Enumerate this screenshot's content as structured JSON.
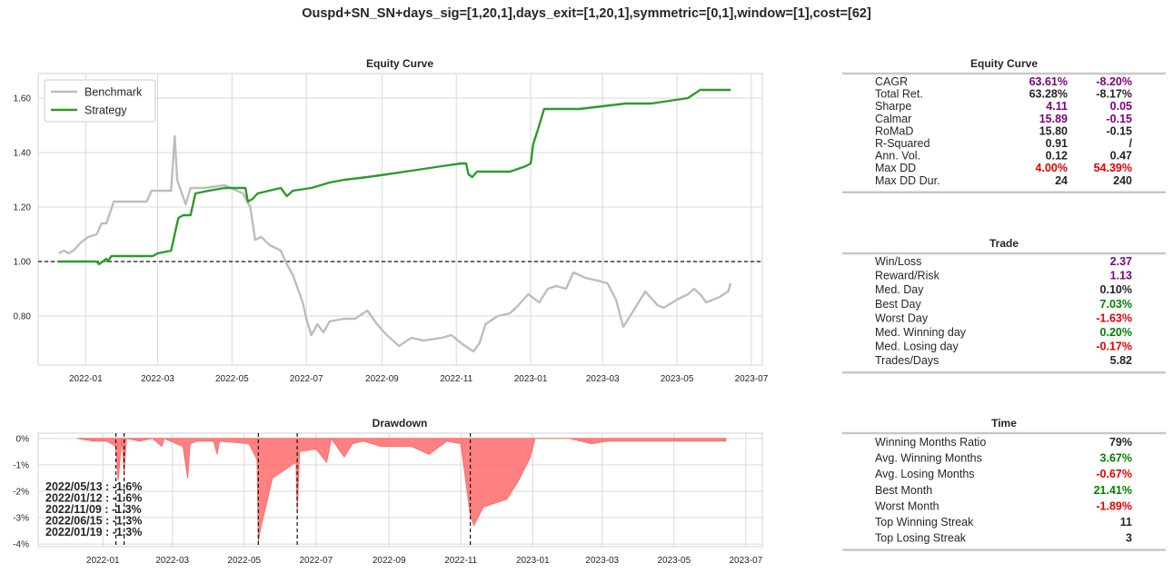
{
  "suptitle": "Ouspd+SN_SN+days_sig=[1,20,1],days_exit=[1,20,1],symmetric=[0,1],window=[1],cost=[62]",
  "colors": {
    "benchmark": "#bdbdbd",
    "strategy": "#2e9a2e",
    "drawdown": "#ff6b6b",
    "purple": "#800080",
    "green": "#008000",
    "red": "#e00000",
    "black": "#262626"
  },
  "chart_data": [
    {
      "type": "line",
      "title": "Equity Curve",
      "x_ticks": [
        "2022-01",
        "2022-03",
        "2022-05",
        "2022-07",
        "2022-09",
        "2022-11",
        "2023-01",
        "2023-03",
        "2023-05",
        "2023-07"
      ],
      "y_ticks": [
        "0.80",
        "1.00",
        "1.20",
        "1.40",
        "1.60"
      ],
      "ylim": [
        0.62,
        1.69
      ],
      "baseline": 1.0,
      "legend": "top-left",
      "series": [
        {
          "name": "Benchmark",
          "points": [
            [
              "2021-12-10",
              1.03
            ],
            [
              "2021-12-14",
              1.04
            ],
            [
              "2021-12-18",
              1.03
            ],
            [
              "2021-12-22",
              1.04
            ],
            [
              "2021-12-28",
              1.07
            ],
            [
              "2022-01-03",
              1.09
            ],
            [
              "2022-01-10",
              1.1
            ],
            [
              "2022-01-14",
              1.14
            ],
            [
              "2022-01-18",
              1.14
            ],
            [
              "2022-01-24",
              1.22
            ],
            [
              "2022-02-05",
              1.22
            ],
            [
              "2022-02-20",
              1.22
            ],
            [
              "2022-02-24",
              1.26
            ],
            [
              "2022-03-05",
              1.26
            ],
            [
              "2022-03-12",
              1.26
            ],
            [
              "2022-03-15",
              1.46
            ],
            [
              "2022-03-17",
              1.3
            ],
            [
              "2022-03-20",
              1.26
            ],
            [
              "2022-03-24",
              1.21
            ],
            [
              "2022-03-28",
              1.27
            ],
            [
              "2022-04-08",
              1.27
            ],
            [
              "2022-04-25",
              1.28
            ],
            [
              "2022-05-10",
              1.25
            ],
            [
              "2022-05-16",
              1.2
            ],
            [
              "2022-05-20",
              1.08
            ],
            [
              "2022-05-25",
              1.09
            ],
            [
              "2022-06-01",
              1.06
            ],
            [
              "2022-06-10",
              1.04
            ],
            [
              "2022-06-15",
              0.99
            ],
            [
              "2022-06-20",
              0.95
            ],
            [
              "2022-06-28",
              0.85
            ],
            [
              "2022-07-01",
              0.79
            ],
            [
              "2022-07-05",
              0.73
            ],
            [
              "2022-07-10",
              0.77
            ],
            [
              "2022-07-15",
              0.74
            ],
            [
              "2022-07-20",
              0.78
            ],
            [
              "2022-08-01",
              0.79
            ],
            [
              "2022-08-10",
              0.79
            ],
            [
              "2022-08-20",
              0.82
            ],
            [
              "2022-08-28",
              0.77
            ],
            [
              "2022-09-05",
              0.73
            ],
            [
              "2022-09-15",
              0.69
            ],
            [
              "2022-09-25",
              0.72
            ],
            [
              "2022-10-05",
              0.71
            ],
            [
              "2022-10-20",
              0.72
            ],
            [
              "2022-10-28",
              0.73
            ],
            [
              "2022-11-05",
              0.7
            ],
            [
              "2022-11-15",
              0.67
            ],
            [
              "2022-11-20",
              0.7
            ],
            [
              "2022-11-25",
              0.77
            ],
            [
              "2022-12-05",
              0.8
            ],
            [
              "2022-12-15",
              0.81
            ],
            [
              "2022-12-22",
              0.84
            ],
            [
              "2022-12-30",
              0.88
            ],
            [
              "2023-01-08",
              0.85
            ],
            [
              "2023-01-15",
              0.9
            ],
            [
              "2023-01-22",
              0.91
            ],
            [
              "2023-01-30",
              0.9
            ],
            [
              "2023-02-05",
              0.96
            ],
            [
              "2023-02-15",
              0.94
            ],
            [
              "2023-02-25",
              0.93
            ],
            [
              "2023-03-05",
              0.92
            ],
            [
              "2023-03-12",
              0.86
            ],
            [
              "2023-03-18",
              0.76
            ],
            [
              "2023-03-25",
              0.81
            ],
            [
              "2023-04-05",
              0.89
            ],
            [
              "2023-04-15",
              0.84
            ],
            [
              "2023-04-20",
              0.83
            ],
            [
              "2023-05-01",
              0.86
            ],
            [
              "2023-05-10",
              0.88
            ],
            [
              "2023-05-15",
              0.9
            ],
            [
              "2023-05-20",
              0.88
            ],
            [
              "2023-05-25",
              0.85
            ],
            [
              "2023-06-05",
              0.87
            ],
            [
              "2023-06-12",
              0.89
            ],
            [
              "2023-06-14",
              0.92
            ]
          ]
        },
        {
          "name": "Strategy",
          "points": [
            [
              "2021-12-10",
              1.0
            ],
            [
              "2021-12-25",
              1.0
            ],
            [
              "2022-01-05",
              1.0
            ],
            [
              "2022-01-10",
              1.0
            ],
            [
              "2022-01-12",
              0.99
            ],
            [
              "2022-01-15",
              1.0
            ],
            [
              "2022-01-18",
              1.01
            ],
            [
              "2022-01-19",
              1.0
            ],
            [
              "2022-01-22",
              1.02
            ],
            [
              "2022-02-15",
              1.02
            ],
            [
              "2022-02-25",
              1.02
            ],
            [
              "2022-03-01",
              1.03
            ],
            [
              "2022-03-12",
              1.04
            ],
            [
              "2022-03-15",
              1.1
            ],
            [
              "2022-03-18",
              1.16
            ],
            [
              "2022-03-22",
              1.17
            ],
            [
              "2022-03-28",
              1.17
            ],
            [
              "2022-04-01",
              1.25
            ],
            [
              "2022-04-12",
              1.26
            ],
            [
              "2022-04-25",
              1.27
            ],
            [
              "2022-05-05",
              1.27
            ],
            [
              "2022-05-12",
              1.27
            ],
            [
              "2022-05-14",
              1.22
            ],
            [
              "2022-05-18",
              1.23
            ],
            [
              "2022-05-22",
              1.25
            ],
            [
              "2022-06-10",
              1.27
            ],
            [
              "2022-06-15",
              1.24
            ],
            [
              "2022-06-20",
              1.26
            ],
            [
              "2022-07-05",
              1.27
            ],
            [
              "2022-07-20",
              1.29
            ],
            [
              "2022-08-01",
              1.3
            ],
            [
              "2022-08-20",
              1.31
            ],
            [
              "2022-09-05",
              1.32
            ],
            [
              "2022-09-20",
              1.33
            ],
            [
              "2022-10-05",
              1.34
            ],
            [
              "2022-10-20",
              1.35
            ],
            [
              "2022-11-05",
              1.36
            ],
            [
              "2022-11-09",
              1.36
            ],
            [
              "2022-11-11",
              1.32
            ],
            [
              "2022-11-14",
              1.31
            ],
            [
              "2022-11-18",
              1.33
            ],
            [
              "2022-12-15",
              1.33
            ],
            [
              "2022-12-28",
              1.35
            ],
            [
              "2023-01-01",
              1.36
            ],
            [
              "2023-01-03",
              1.43
            ],
            [
              "2023-01-08",
              1.5
            ],
            [
              "2023-01-12",
              1.56
            ],
            [
              "2023-02-01",
              1.56
            ],
            [
              "2023-02-10",
              1.56
            ],
            [
              "2023-03-01",
              1.57
            ],
            [
              "2023-03-20",
              1.58
            ],
            [
              "2023-04-10",
              1.58
            ],
            [
              "2023-04-25",
              1.59
            ],
            [
              "2023-05-10",
              1.6
            ],
            [
              "2023-05-20",
              1.63
            ],
            [
              "2023-06-14",
              1.63
            ]
          ]
        }
      ]
    },
    {
      "type": "area",
      "title": "Drawdown",
      "x_ticks": [
        "2022-01",
        "2022-03",
        "2022-05",
        "2022-07",
        "2022-09",
        "2022-11",
        "2023-01",
        "2023-03",
        "2023-05",
        "2023-07"
      ],
      "y_ticks": [
        "0%",
        "-1%",
        "-2%",
        "-3%",
        "-4%"
      ],
      "ylim": [
        -4.1,
        0.2
      ],
      "points": [
        [
          "2021-12-10",
          0
        ],
        [
          "2021-12-24",
          -0.1
        ],
        [
          "2022-01-04",
          -0.1
        ],
        [
          "2022-01-12",
          -0.3
        ],
        [
          "2022-01-14",
          -1.6
        ],
        [
          "2022-01-17",
          0
        ],
        [
          "2022-01-19",
          -1.3
        ],
        [
          "2022-01-21",
          0
        ],
        [
          "2022-02-01",
          -0.1
        ],
        [
          "2022-02-12",
          0
        ],
        [
          "2022-02-20",
          -0.3
        ],
        [
          "2022-02-22",
          0
        ],
        [
          "2022-03-10",
          -0.3
        ],
        [
          "2022-03-14",
          -1.5
        ],
        [
          "2022-03-16",
          -0.2
        ],
        [
          "2022-03-22",
          -0.1
        ],
        [
          "2022-04-05",
          -0.1
        ],
        [
          "2022-04-08",
          -0.6
        ],
        [
          "2022-04-10",
          -0.1
        ],
        [
          "2022-05-05",
          -0.2
        ],
        [
          "2022-05-12",
          -0.8
        ],
        [
          "2022-05-13",
          -3.9
        ],
        [
          "2022-05-15",
          -3.4
        ],
        [
          "2022-05-25",
          -1.5
        ],
        [
          "2022-06-14",
          -0.9
        ],
        [
          "2022-06-15",
          -2.8
        ],
        [
          "2022-06-17",
          -0.5
        ],
        [
          "2022-07-01",
          -0.4
        ],
        [
          "2022-07-10",
          -0.9
        ],
        [
          "2022-07-14",
          0
        ],
        [
          "2022-07-25",
          -0.7
        ],
        [
          "2022-08-01",
          -0.2
        ],
        [
          "2022-08-10",
          -0.1
        ],
        [
          "2022-08-25",
          -0.3
        ],
        [
          "2022-09-20",
          -0.3
        ],
        [
          "2022-10-05",
          -0.6
        ],
        [
          "2022-10-20",
          -0.1
        ],
        [
          "2022-11-01",
          -0.2
        ],
        [
          "2022-11-09",
          -2.9
        ],
        [
          "2022-11-12",
          -3.3
        ],
        [
          "2022-11-20",
          -2.6
        ],
        [
          "2022-12-10",
          -2.3
        ],
        [
          "2022-12-20",
          -1.6
        ],
        [
          "2022-12-30",
          -0.7
        ],
        [
          "2023-01-03",
          0
        ],
        [
          "2023-02-01",
          0
        ],
        [
          "2023-02-20",
          -0.2
        ],
        [
          "2023-03-05",
          -0.1
        ],
        [
          "2023-03-20",
          -0.1
        ],
        [
          "2023-04-10",
          -0.1
        ],
        [
          "2023-04-25",
          -0.1
        ],
        [
          "2023-05-15",
          -0.1
        ],
        [
          "2023-06-14",
          -0.1
        ]
      ],
      "markers": [
        "2022-01-12",
        "2022-01-19",
        "2022-05-13",
        "2022-06-15",
        "2022-11-09"
      ],
      "annotations": [
        "2022/05/13 : -1.6%",
        "2022/01/12 : -1.6%",
        "2022/11/09 : -1.3%",
        "2022/06/15 : -1.3%",
        "2022/01/19 : -1.3%"
      ]
    }
  ],
  "tables": {
    "equity": {
      "title": "Equity Curve",
      "rows": [
        {
          "label": "CAGR",
          "v1": "63.61%",
          "v2": "-8.20%",
          "c1": "purple",
          "c2": "purple"
        },
        {
          "label": "Total Ret.",
          "v1": "63.28%",
          "v2": "-8.17%",
          "c1": "black",
          "c2": "black"
        },
        {
          "label": "Sharpe",
          "v1": "4.11",
          "v2": "0.05",
          "c1": "purple",
          "c2": "purple"
        },
        {
          "label": "Calmar",
          "v1": "15.89",
          "v2": "-0.15",
          "c1": "purple",
          "c2": "purple"
        },
        {
          "label": "RoMaD",
          "v1": "15.80",
          "v2": "-0.15",
          "c1": "black",
          "c2": "black"
        },
        {
          "label": "R-Squared",
          "v1": "0.91",
          "v2": "/",
          "c1": "black",
          "c2": "black"
        },
        {
          "label": "Ann. Vol.",
          "v1": "0.12",
          "v2": "0.47",
          "c1": "black",
          "c2": "black"
        },
        {
          "label": "Max DD",
          "v1": "4.00%",
          "v2": "54.39%",
          "c1": "red",
          "c2": "red"
        },
        {
          "label": "Max DD Dur.",
          "v1": "24",
          "v2": "240",
          "c1": "black",
          "c2": "black"
        }
      ]
    },
    "trade": {
      "title": "Trade",
      "rows": [
        {
          "label": "Win/Loss",
          "v": "2.37",
          "c": "purple"
        },
        {
          "label": "Reward/Risk",
          "v": "1.13",
          "c": "purple"
        },
        {
          "label": "Med. Day",
          "v": "0.10%",
          "c": "black"
        },
        {
          "label": "Best Day",
          "v": "7.03%",
          "c": "green"
        },
        {
          "label": "Worst Day",
          "v": "-1.63%",
          "c": "red"
        },
        {
          "label": "Med. Winning day",
          "v": "0.20%",
          "c": "green"
        },
        {
          "label": "Med. Losing day",
          "v": "-0.17%",
          "c": "red"
        },
        {
          "label": "Trades/Days",
          "v": "5.82",
          "c": "black"
        }
      ]
    },
    "time": {
      "title": "Time",
      "rows": [
        {
          "label": "Winning Months Ratio",
          "v": "79%",
          "c": "black"
        },
        {
          "label": "Avg. Winning Months",
          "v": "3.67%",
          "c": "green"
        },
        {
          "label": "Avg. Losing Months",
          "v": "-0.67%",
          "c": "red"
        },
        {
          "label": "Best Month",
          "v": "21.41%",
          "c": "green"
        },
        {
          "label": "Worst Month",
          "v": "-1.89%",
          "c": "red"
        },
        {
          "label": "Top Winning Streak",
          "v": "11",
          "c": "black"
        },
        {
          "label": "Top Losing Streak",
          "v": "3",
          "c": "black"
        }
      ]
    }
  }
}
